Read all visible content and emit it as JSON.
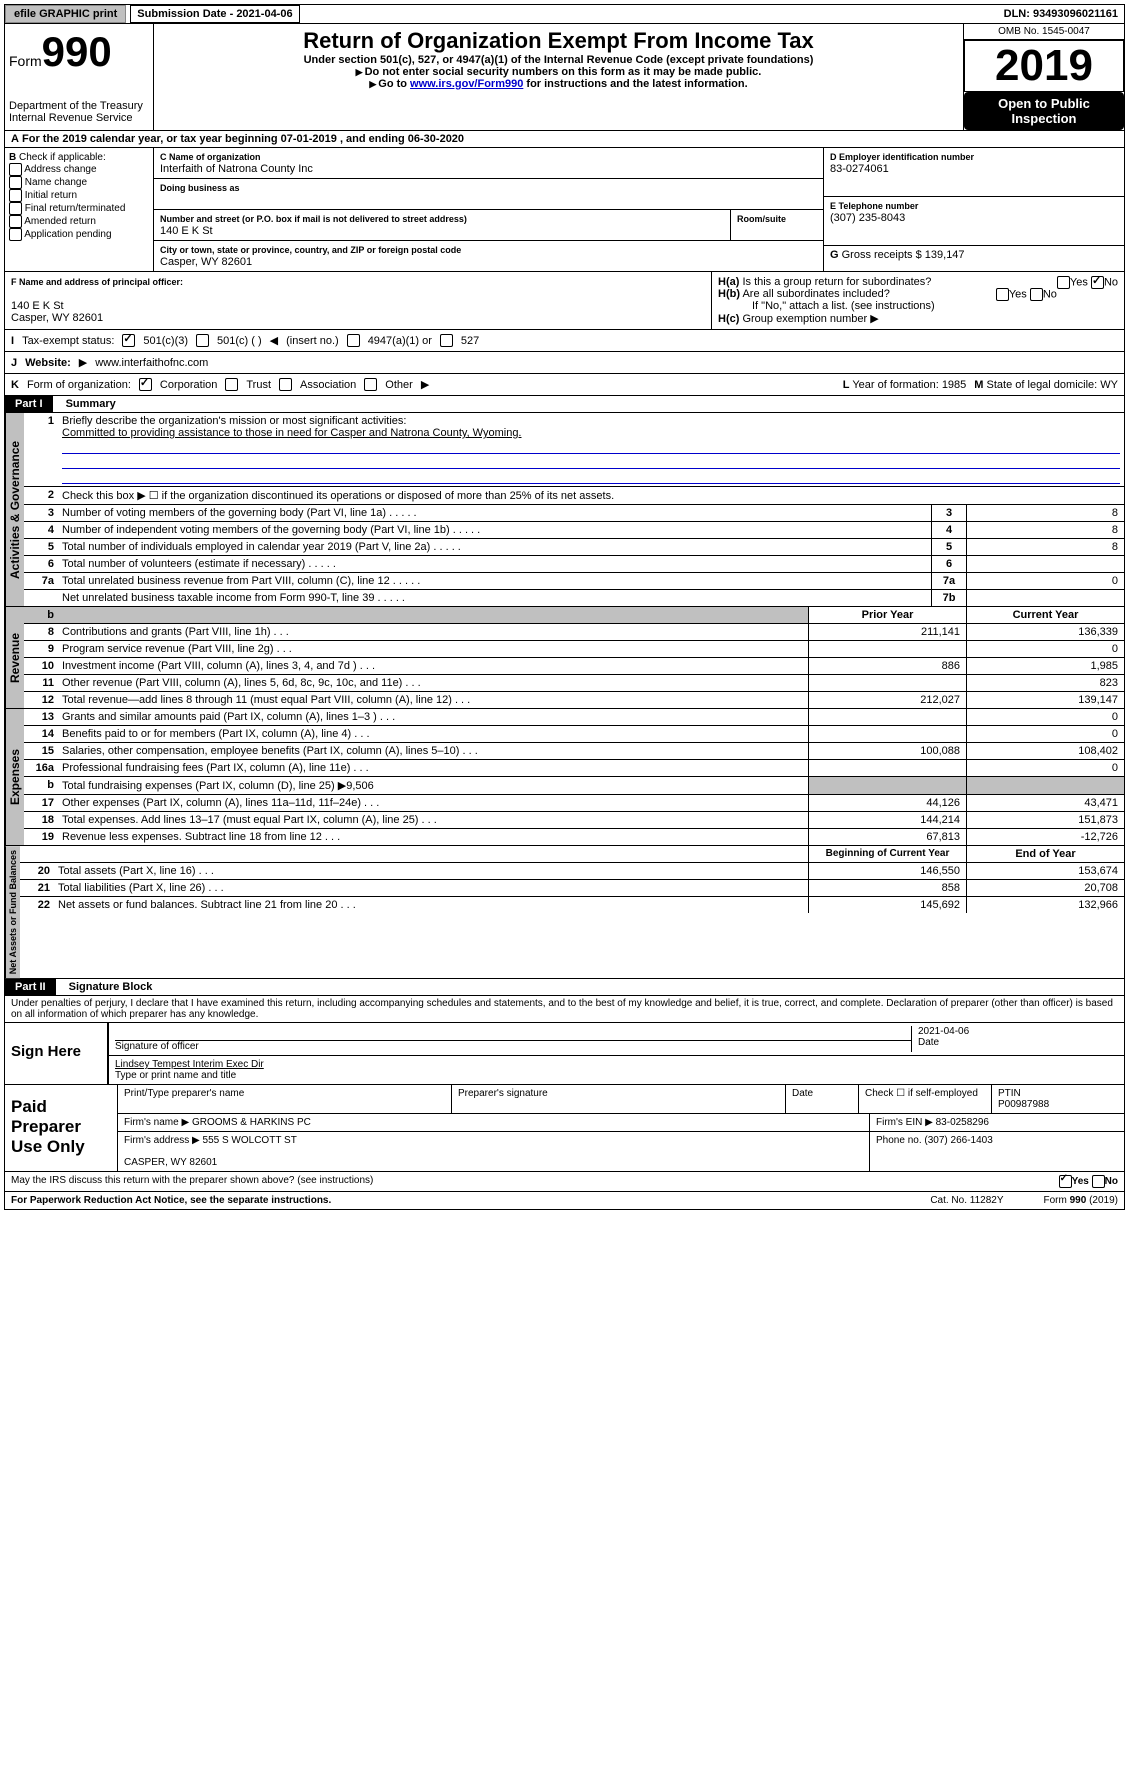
{
  "top": {
    "efile": "efile GRAPHIC print",
    "submission": "Submission Date - 2021-04-06",
    "dln": "DLN: 93493096021161"
  },
  "hdr": {
    "form": "Form",
    "num": "990",
    "dept": "Department of the Treasury\nInternal Revenue Service",
    "title": "Return of Organization Exempt From Income Tax",
    "sub1": "Under section 501(c), 527, or 4947(a)(1) of the Internal Revenue Code (except private foundations)",
    "sub2": "Do not enter social security numbers on this form as it may be made public.",
    "sub3a": "Go to ",
    "sub3b": "www.irs.gov/Form990",
    "sub3c": " for instructions and the latest information.",
    "omb": "OMB No. 1545-0047",
    "year": "2019",
    "otp": "Open to Public Inspection"
  },
  "A": "For the 2019 calendar year, or tax year beginning 07-01-2019   , and ending 06-30-2020",
  "B": {
    "label": "Check if applicable:",
    "items": [
      "Address change",
      "Name change",
      "Initial return",
      "Final return/terminated",
      "Amended return",
      "Application pending"
    ]
  },
  "C": {
    "name_lbl": "Name of organization",
    "name": "Interfaith of Natrona County Inc",
    "dba_lbl": "Doing business as",
    "addr_lbl": "Number and street (or P.O. box if mail is not delivered to street address)",
    "room_lbl": "Room/suite",
    "addr": "140 E K St",
    "city_lbl": "City or town, state or province, country, and ZIP or foreign postal code",
    "city": "Casper, WY  82601"
  },
  "D": {
    "lbl": "Employer identification number",
    "val": "83-0274061"
  },
  "E": {
    "lbl": "Telephone number",
    "val": "(307) 235-8043"
  },
  "G": {
    "lbl": "Gross receipts $",
    "val": "139,147"
  },
  "F": {
    "lbl": "Name and address of principal officer:",
    "addr": "140 E K St\nCasper, WY  82601"
  },
  "H": {
    "a": "Is this a group return for subordinates?",
    "a_no": "No",
    "b": "Are all subordinates included?",
    "b2": "If \"No,\" attach a list. (see instructions)",
    "c": "Group exemption number"
  },
  "I": {
    "lbl": "Tax-exempt status:",
    "o1": "501(c)(3)",
    "o2": "501(c) (  )",
    "ins": "(insert no.)",
    "o3": "4947(a)(1) or",
    "o4": "527"
  },
  "J": {
    "lbl": "Website:",
    "val": "www.interfaithofnc.com"
  },
  "K": {
    "lbl": "Form of organization:",
    "o1": "Corporation",
    "o2": "Trust",
    "o3": "Association",
    "o4": "Other"
  },
  "L": {
    "lbl": "Year of formation:",
    "val": "1985"
  },
  "M": {
    "lbl": "State of legal domicile:",
    "val": "WY"
  },
  "parts": {
    "p1": "Part I",
    "p1t": "Summary",
    "p2": "Part II",
    "p2t": "Signature Block"
  },
  "summary": {
    "l1": "Briefly describe the organization's mission or most significant activities:",
    "l1v": "Committed to providing assistance to those in need for Casper and Natrona County, Wyoming.",
    "l2": "Check this box ▶ ☐  if the organization discontinued its operations or disposed of more than 25% of its net assets.",
    "rows_gov": [
      {
        "n": "3",
        "d": "Number of voting members of the governing body (Part VI, line 1a)",
        "b": "3",
        "v": "8"
      },
      {
        "n": "4",
        "d": "Number of independent voting members of the governing body (Part VI, line 1b)",
        "b": "4",
        "v": "8"
      },
      {
        "n": "5",
        "d": "Total number of individuals employed in calendar year 2019 (Part V, line 2a)",
        "b": "5",
        "v": "8"
      },
      {
        "n": "6",
        "d": "Total number of volunteers (estimate if necessary)",
        "b": "6",
        "v": ""
      },
      {
        "n": "7a",
        "d": "Total unrelated business revenue from Part VIII, column (C), line 12",
        "b": "7a",
        "v": "0"
      },
      {
        "n": "",
        "d": "Net unrelated business taxable income from Form 990-T, line 39",
        "b": "7b",
        "v": ""
      }
    ],
    "col_prior": "Prior Year",
    "col_curr": "Current Year",
    "rows_rev": [
      {
        "n": "8",
        "d": "Contributions and grants (Part VIII, line 1h)",
        "p": "211,141",
        "c": "136,339"
      },
      {
        "n": "9",
        "d": "Program service revenue (Part VIII, line 2g)",
        "p": "",
        "c": "0"
      },
      {
        "n": "10",
        "d": "Investment income (Part VIII, column (A), lines 3, 4, and 7d )",
        "p": "886",
        "c": "1,985"
      },
      {
        "n": "11",
        "d": "Other revenue (Part VIII, column (A), lines 5, 6d, 8c, 9c, 10c, and 11e)",
        "p": "",
        "c": "823"
      },
      {
        "n": "12",
        "d": "Total revenue—add lines 8 through 11 (must equal Part VIII, column (A), line 12)",
        "p": "212,027",
        "c": "139,147"
      }
    ],
    "rows_exp": [
      {
        "n": "13",
        "d": "Grants and similar amounts paid (Part IX, column (A), lines 1–3 )",
        "p": "",
        "c": "0"
      },
      {
        "n": "14",
        "d": "Benefits paid to or for members (Part IX, column (A), line 4)",
        "p": "",
        "c": "0"
      },
      {
        "n": "15",
        "d": "Salaries, other compensation, employee benefits (Part IX, column (A), lines 5–10)",
        "p": "100,088",
        "c": "108,402"
      },
      {
        "n": "16a",
        "d": "Professional fundraising fees (Part IX, column (A), line 11e)",
        "p": "",
        "c": "0"
      },
      {
        "n": "b",
        "d": "Total fundraising expenses (Part IX, column (D), line 25) ▶9,506",
        "p": "—",
        "c": "—"
      },
      {
        "n": "17",
        "d": "Other expenses (Part IX, column (A), lines 11a–11d, 11f–24e)",
        "p": "44,126",
        "c": "43,471"
      },
      {
        "n": "18",
        "d": "Total expenses. Add lines 13–17 (must equal Part IX, column (A), line 25)",
        "p": "144,214",
        "c": "151,873"
      },
      {
        "n": "19",
        "d": "Revenue less expenses. Subtract line 18 from line 12",
        "p": "67,813",
        "c": "-12,726"
      }
    ],
    "col_beg": "Beginning of Current Year",
    "col_end": "End of Year",
    "rows_net": [
      {
        "n": "20",
        "d": "Total assets (Part X, line 16)",
        "p": "146,550",
        "c": "153,674"
      },
      {
        "n": "21",
        "d": "Total liabilities (Part X, line 26)",
        "p": "858",
        "c": "20,708"
      },
      {
        "n": "22",
        "d": "Net assets or fund balances. Subtract line 21 from line 20",
        "p": "145,692",
        "c": "132,966"
      }
    ]
  },
  "sig": {
    "decl": "Under penalties of perjury, I declare that I have examined this return, including accompanying schedules and statements, and to the best of my knowledge and belief, it is true, correct, and complete. Declaration of preparer (other than officer) is based on all information of which preparer has any knowledge.",
    "here": "Sign Here",
    "sig_lbl": "Signature of officer",
    "date_lbl": "Date",
    "date": "2021-04-06",
    "name": "Lindsey Tempest Interim Exec Dir",
    "name_lbl": "Type or print name and title"
  },
  "paid": {
    "title": "Paid Preparer Use Only",
    "h1": "Print/Type preparer's name",
    "h2": "Preparer's signature",
    "h3": "Date",
    "h4": "Check ☐ if self-employed",
    "ptin_lbl": "PTIN",
    "ptin": "P00987988",
    "firm_lbl": "Firm's name",
    "firm": "GROOMS & HARKINS PC",
    "ein_lbl": "Firm's EIN",
    "ein": "83-0258296",
    "addr_lbl": "Firm's address",
    "addr": "555 S WOLCOTT ST\n\nCASPER, WY  82601",
    "ph_lbl": "Phone no.",
    "ph": "(307) 266-1403"
  },
  "foot": {
    "q": "May the IRS discuss this return with the preparer shown above? (see instructions)",
    "yes": "Yes",
    "no": "No",
    "pra": "For Paperwork Reduction Act Notice, see the separate instructions.",
    "cat": "Cat. No. 11282Y",
    "form": "Form 990 (2019)"
  }
}
